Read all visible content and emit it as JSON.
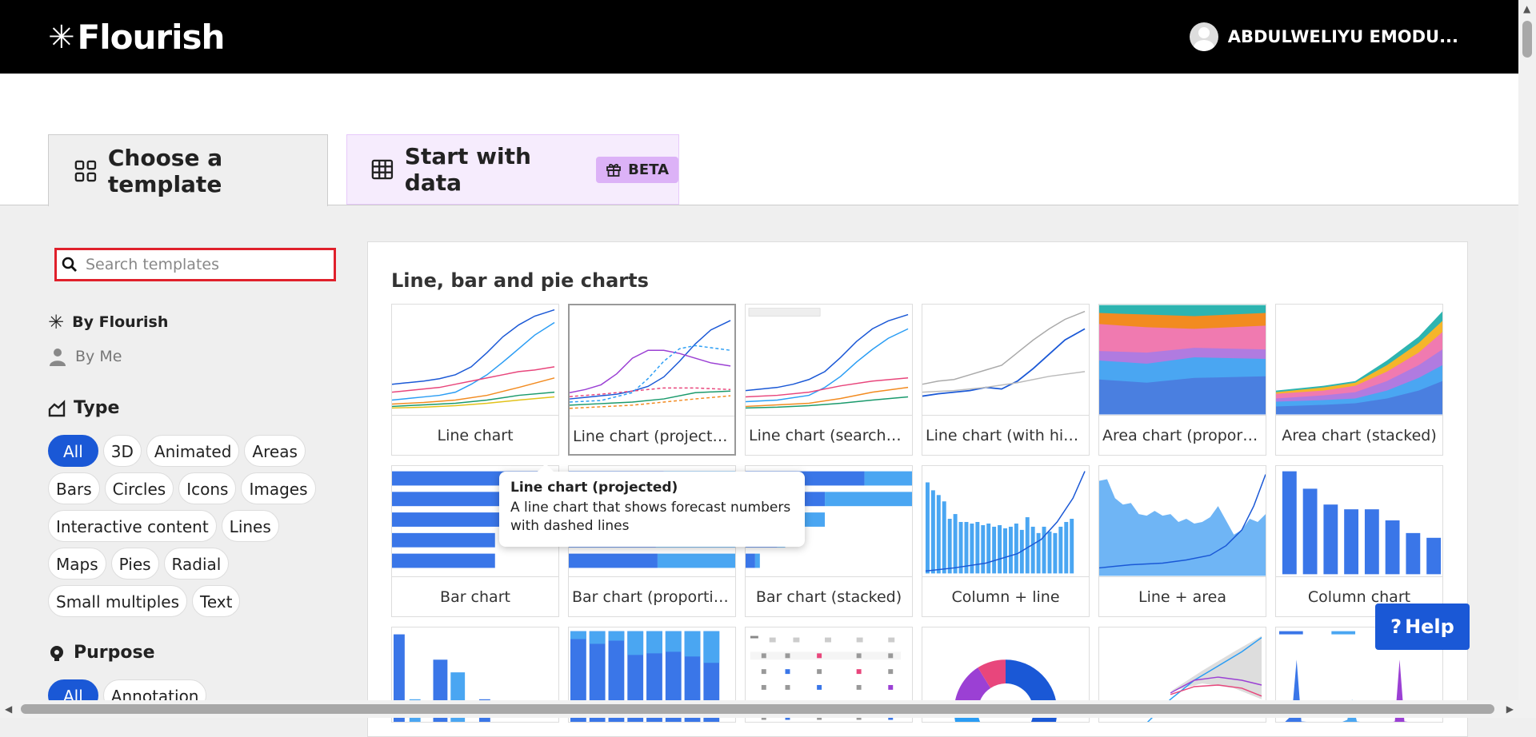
{
  "header": {
    "logo": "Flourish",
    "user_name": "ABDULWELIYU EMODU..."
  },
  "tabs": {
    "choose_template": "Choose a template",
    "start_with_data": "Start with data",
    "beta_badge": "BETA"
  },
  "search": {
    "placeholder": "Search templates",
    "value": ""
  },
  "sidebar": {
    "by_flourish": "By Flourish",
    "by_me": "By Me",
    "type_heading": "Type",
    "type_filters": [
      "All",
      "3D",
      "Animated",
      "Areas",
      "Bars",
      "Circles",
      "Icons",
      "Images",
      "Interactive content",
      "Lines",
      "Maps",
      "Pies",
      "Radial",
      "Small multiples",
      "Text"
    ],
    "purpose_heading": "Purpose",
    "purpose_filters": [
      "All",
      "Annotation"
    ]
  },
  "section_title": "Line, bar and pie charts",
  "templates": [
    "Line chart",
    "Line chart (projected)",
    "Line chart (searchable)",
    "Line chart (with highl...",
    "Area chart (proportio...",
    "Area chart (stacked)",
    "Bar chart",
    "Bar chart (proportion...",
    "Bar chart (stacked)",
    "Column + line",
    "Line + area",
    "Column chart"
  ],
  "tooltip": {
    "title": "Line chart (projected)",
    "description": "A line chart that shows forecast numbers with dashed lines"
  },
  "help_button": "Help",
  "colors": {
    "accent_blue": "#1a58d6",
    "search_outline": "#e0202b",
    "beta_bg": "#dcb2f7",
    "tab_data_bg": "#f6ecfd"
  }
}
